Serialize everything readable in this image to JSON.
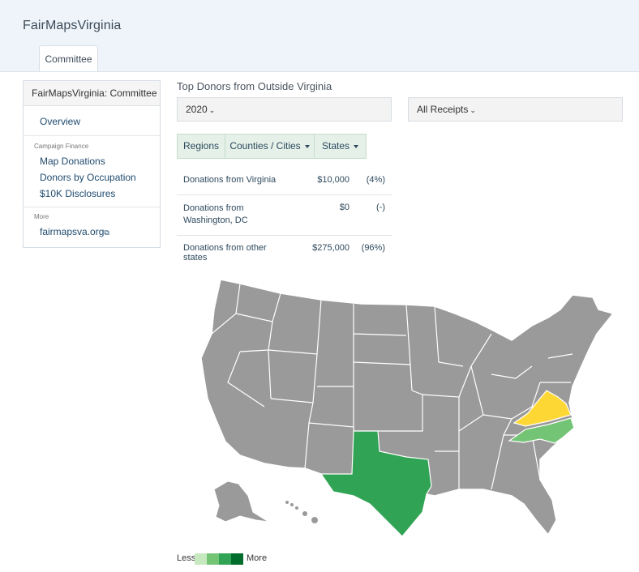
{
  "header": {
    "brand": "FairMapsVirginia",
    "tab_label": "Committee"
  },
  "sidebar": {
    "title": "FairMapsVirginia: Committee",
    "overview": "Overview",
    "section_finance": "Campaign Finance",
    "links": [
      "Map Donations",
      "Donors by Occupation",
      "$10K Disclosures"
    ],
    "section_more": "More",
    "external_link": "fairmapsva.org",
    "external_icon": "external-link-icon"
  },
  "main": {
    "title": "Top Donors from Outside Virginia",
    "year_select": "2020",
    "receipts_select": "All Receipts",
    "tabs": [
      "Regions",
      "Counties / Cities",
      "States"
    ],
    "donations": [
      {
        "label": "Donations from Virginia",
        "amount": "$10,000",
        "pct": "(4%)"
      },
      {
        "label": "Donations from Washington, DC",
        "amount": "$0",
        "pct": "(-)"
      },
      {
        "label": "Donations from other states",
        "amount": "$275,000",
        "pct": "(96%)"
      }
    ]
  },
  "map": {
    "default_color": "#9a9a9a",
    "highlight": [
      {
        "state": "Virginia",
        "color": "#fdd835"
      },
      {
        "state": "North Carolina",
        "color": "#74c476"
      },
      {
        "state": "Texas",
        "color": "#31a354"
      }
    ]
  },
  "legend": {
    "less": "Less",
    "more": "More",
    "colors": [
      "#c7e9c0",
      "#74c476",
      "#31a354",
      "#006d2c"
    ]
  }
}
